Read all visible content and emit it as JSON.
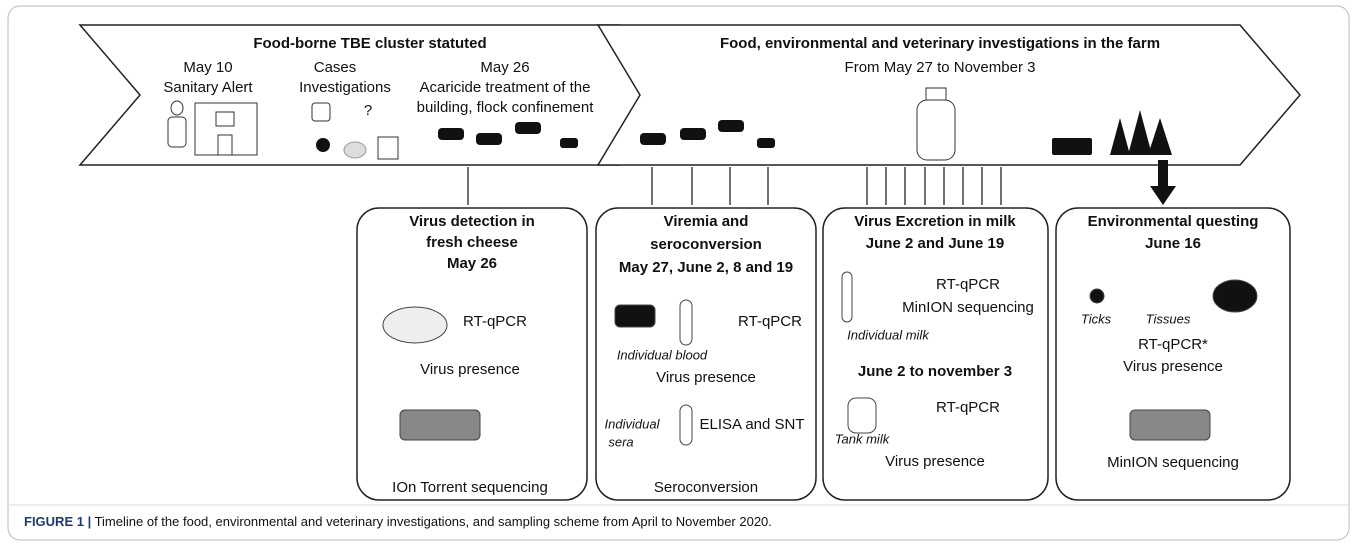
{
  "timeline": {
    "left": {
      "title": "Food-borne TBE cluster statuted",
      "events": [
        {
          "date": "May 10",
          "label": "Sanitary Alert"
        },
        {
          "date": "Cases",
          "label": "Investigations",
          "mark": "?"
        },
        {
          "date": "May 26",
          "lines": [
            "Acaricide treatment of the",
            "building, flock confinement"
          ]
        }
      ]
    },
    "right": {
      "title": "Food, environmental and veterinary investigations in the farm",
      "subtitle": "From May 27 to November 3"
    }
  },
  "boxes": [
    {
      "title": [
        "Virus detection in",
        "fresh cheese",
        "May 26"
      ],
      "method": "RT-qPCR",
      "result": "Virus presence",
      "sequencing": "IOn Torrent sequencing"
    },
    {
      "title": [
        "Viremia and",
        "seroconversion",
        "May 27, June 2, 8 and 19"
      ],
      "method": "RT-qPCR",
      "sample": "Individual blood",
      "result": "Virus presence",
      "sample2": [
        "Individual",
        "sera"
      ],
      "method2": "ELISA and SNT",
      "result2": "Seroconversion"
    },
    {
      "title": [
        "Virus Excretion in milk",
        "June 2 and June 19"
      ],
      "method": "RT-qPCR",
      "sequencing": "MinION sequencing",
      "sample": "Individual milk",
      "title2": "June 2 to november 3",
      "method2": "RT-qPCR",
      "sample2": "Tank milk",
      "result": "Virus presence"
    },
    {
      "title": [
        "Environmental questing",
        "June 16"
      ],
      "sample": "Ticks",
      "sample2": "Tissues",
      "method": "RT-qPCR*",
      "result": "Virus presence",
      "sequencing": "MinION sequencing"
    }
  ],
  "caption": {
    "label": "FIGURE 1 |",
    "text": " Timeline of the food, environmental and veterinary investigations, and sampling scheme from April to November 2020."
  }
}
